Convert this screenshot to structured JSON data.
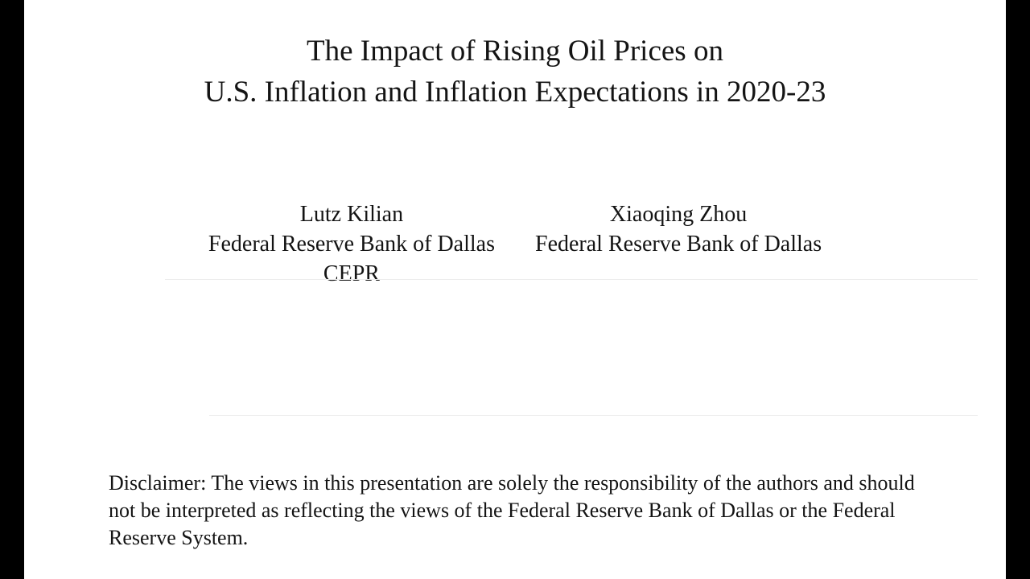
{
  "slide": {
    "title": {
      "line1": "The Impact of Rising Oil Prices on",
      "line2": "U.S. Inflation and Inflation Expectations in 2020-23"
    },
    "authors": [
      {
        "name": "Lutz Kilian",
        "affiliation1": "Federal Reserve Bank of Dallas",
        "affiliation2": "CEPR"
      },
      {
        "name": "Xiaoqing Zhou",
        "affiliation1": "Federal Reserve Bank of Dallas",
        "affiliation2": ""
      }
    ],
    "disclaimer": "Disclaimer: The views in this presentation are solely the responsibility of the authors and should not be interpreted as reflecting the views of the Federal Reserve Bank of Dallas or the Federal Reserve System."
  }
}
